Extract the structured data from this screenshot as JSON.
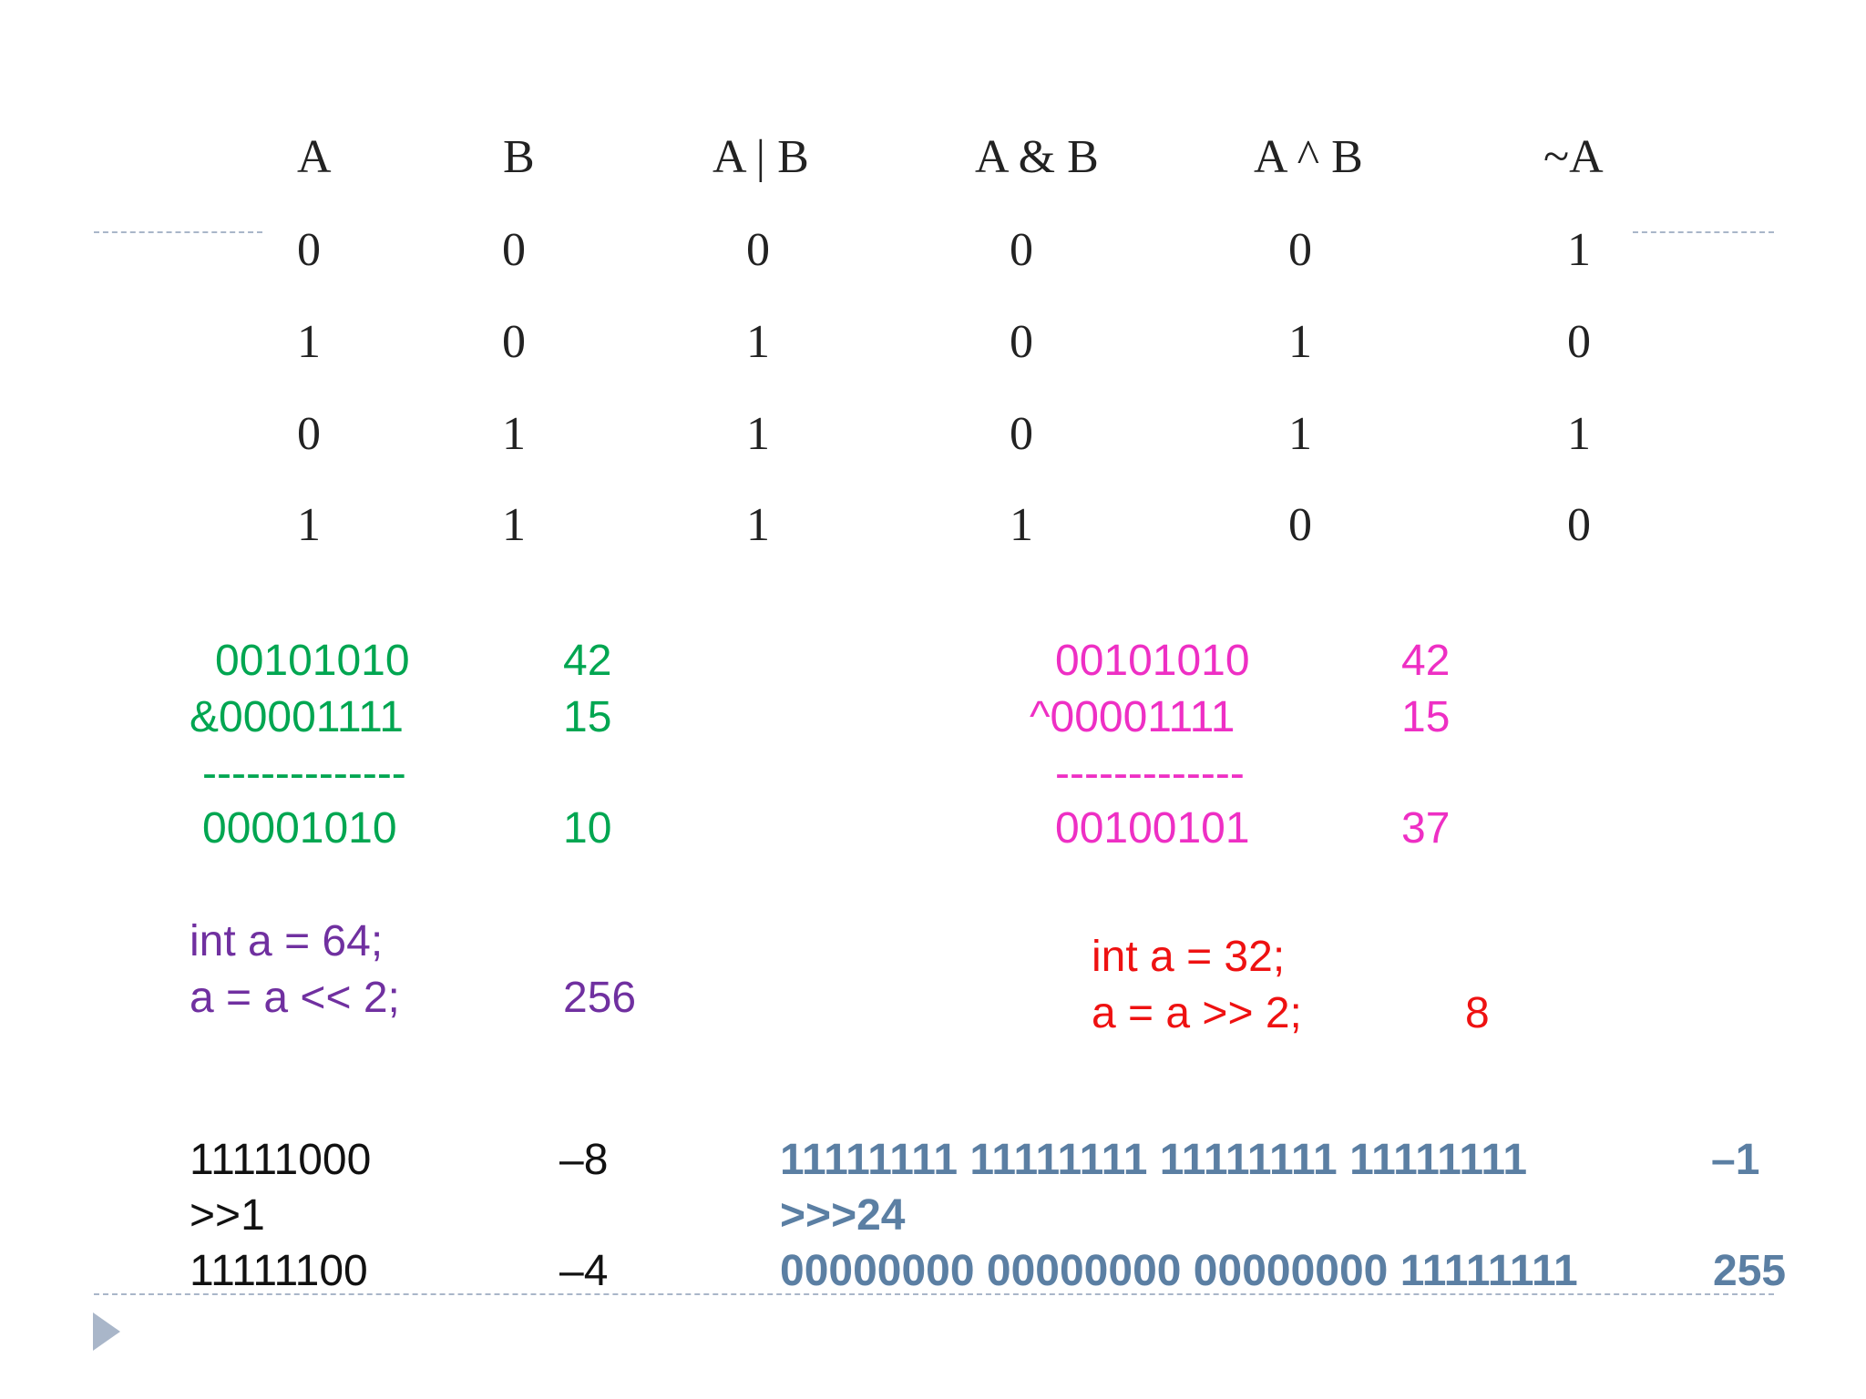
{
  "truth_table": {
    "headers": [
      "A",
      "B",
      "A | B",
      "A & B",
      "A ^ B",
      "~A"
    ],
    "rows": [
      [
        "0",
        "0",
        "0",
        "0",
        "0",
        "1"
      ],
      [
        "1",
        "0",
        "1",
        "0",
        "1",
        "0"
      ],
      [
        "0",
        "1",
        "1",
        "0",
        "1",
        "1"
      ],
      [
        "1",
        "1",
        "1",
        "1",
        "0",
        "0"
      ]
    ]
  },
  "and_example": {
    "operand1_bits": "00101010",
    "operand1_value": "42",
    "operand2_bits": "&00001111",
    "operand2_value": "15",
    "separator": "--------------",
    "result_bits": "00001010",
    "result_value": "10",
    "color": "#00a651"
  },
  "xor_example": {
    "operand1_bits": "00101010",
    "operand1_value": "42",
    "operand2_bits": "^00001111",
    "operand2_value": "15",
    "separator": "-------------",
    "result_bits": "00100101",
    "result_value": "37",
    "color": "#ee2fc4"
  },
  "left_shift": {
    "line1": "int a = 64;",
    "line2": "a = a << 2;",
    "result": "256",
    "color": "#7030a0"
  },
  "right_shift": {
    "line1": "int a = 32;",
    "line2": "a = a >> 2;",
    "result": "8",
    "color": "#ee1111"
  },
  "signed_shift": {
    "before_bits": "11111000",
    "before_value": "–8",
    "operator": ">>1",
    "after_bits": "11111100",
    "after_value": "–4"
  },
  "unsigned_shift": {
    "before_bits": "11111111 11111111 11111111 11111111",
    "before_value": "–1",
    "operator": ">>>24",
    "after_bits": "00000000 00000000 00000000 11111111",
    "after_value": "255",
    "color": "#5b7fa3"
  },
  "accent_color": "#a9b6c9",
  "bullet_icon": "triangle-bullet-icon"
}
